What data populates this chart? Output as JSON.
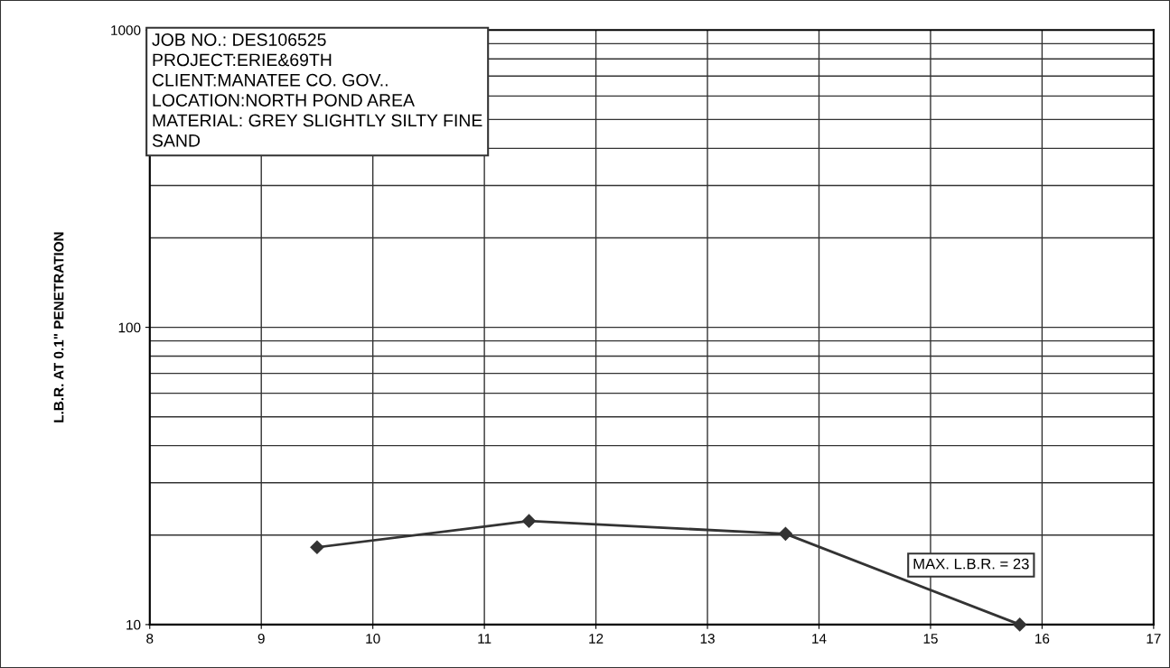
{
  "chart_data": {
    "type": "line",
    "ylabel": "L.B.R. AT 0.1\" PENETRATION",
    "annotations": [
      "JOB NO.: DES106525\nPROJECT:ERIE&69TH\nCLIENT:MANATEE CO. GOV..\nLOCATION:NORTH POND AREA\nMATERIAL: GREY SLIGHTLY SILTY FINE\nSAND",
      "MAX. L.B.R. = 23"
    ],
    "series": [
      {
        "color": "#333333",
        "x": [
          9.5,
          11.4,
          13.7,
          15.8
        ],
        "values": [
          18.2,
          22.3,
          20.2,
          10
        ]
      }
    ],
    "xlim": [
      8,
      17
    ],
    "xticks": [
      8,
      9,
      10,
      11,
      12,
      13,
      14,
      15,
      16,
      17
    ],
    "ylim": [
      10,
      1000
    ],
    "yticks": [
      10,
      100,
      1000
    ],
    "log": "y",
    "grid": true,
    "marker": "diamond",
    "line_style": "solid",
    "legend": false
  }
}
